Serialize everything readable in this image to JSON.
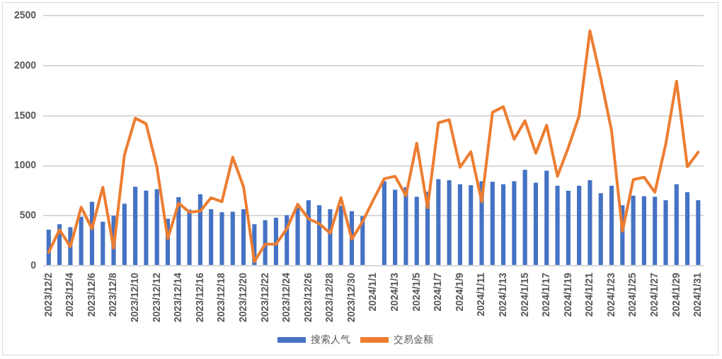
{
  "chart_data": {
    "type": "bar",
    "categories": [
      "2023/12/2",
      null,
      "2023/12/4",
      null,
      "2023/12/6",
      null,
      "2023/12/8",
      null,
      "2023/12/10",
      null,
      "2023/12/12",
      null,
      "2023/12/14",
      null,
      "2023/12/16",
      null,
      "2023/12/18",
      null,
      "2023/12/20",
      null,
      "2023/12/22",
      null,
      "2023/12/24",
      null,
      "2023/12/26",
      null,
      "2023/12/28",
      null,
      "2023/12/30",
      null,
      "2024/1/1",
      null,
      "2024/1/3",
      null,
      "2024/1/5",
      null,
      "2024/1/7",
      null,
      "2024/1/9",
      null,
      "2024/1/11",
      null,
      "2024/1/13",
      null,
      "2024/1/15",
      null,
      "2024/1/17",
      null,
      "2024/1/19",
      null,
      "2024/1/21",
      null,
      "2024/1/23",
      null,
      "2024/1/25",
      null,
      "2024/1/27",
      null,
      "2024/1/29",
      null,
      "2024/1/31"
    ],
    "series": [
      {
        "name": "搜索人气",
        "color": "#4472c4",
        "values": [
          360,
          415,
          385,
          490,
          640,
          440,
          500,
          620,
          790,
          750,
          765,
          470,
          685,
          560,
          715,
          565,
          535,
          540,
          565,
          415,
          455,
          480,
          505,
          580,
          655,
          605,
          565,
          600,
          545,
          495,
          null,
          845,
          760,
          785,
          690,
          740,
          865,
          855,
          815,
          805,
          845,
          840,
          815,
          845,
          960,
          830,
          950,
          800,
          750,
          800,
          855,
          725,
          800,
          605,
          700,
          695,
          690,
          655,
          815,
          735,
          655
        ]
      },
      {
        "name": "交易金额",
        "type": "line",
        "color": "#ed7d31",
        "values": [
          135,
          360,
          190,
          585,
          370,
          785,
          175,
          1110,
          1475,
          1420,
          985,
          270,
          625,
          535,
          545,
          680,
          640,
          1085,
          790,
          40,
          215,
          215,
          370,
          615,
          470,
          420,
          325,
          680,
          265,
          440,
          660,
          870,
          895,
          700,
          1225,
          580,
          1430,
          1460,
          985,
          1140,
          640,
          1535,
          1590,
          1265,
          1450,
          1125,
          1405,
          895,
          1180,
          1500,
          2350,
          1875,
          1350,
          345,
          860,
          885,
          735,
          1215,
          1845,
          990,
          1135
        ]
      }
    ],
    "ylim": [
      0,
      2500
    ],
    "yticks": [
      0,
      500,
      1000,
      1500,
      2000,
      2500
    ],
    "grid": "y",
    "legend": "bottom",
    "marker": "none",
    "line_style": "solid"
  }
}
